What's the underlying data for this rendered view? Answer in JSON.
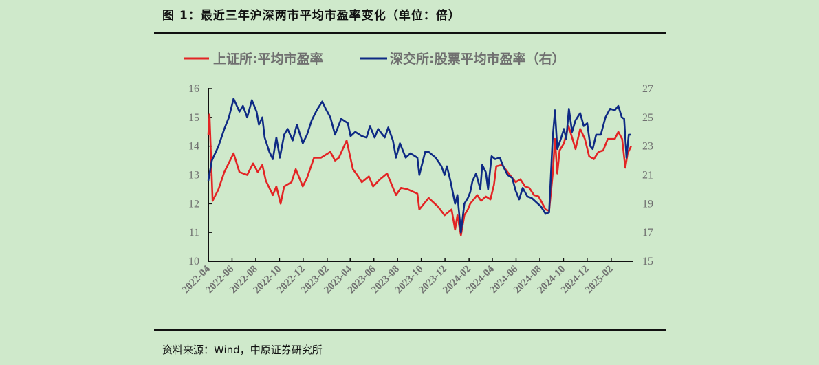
{
  "title": "图 1：最近三年沪深两市平均市盈率变化（单位：倍）",
  "source": "资料来源：Wind，中原证券研究所",
  "chart_data": {
    "type": "line",
    "title": "",
    "grid": false,
    "legend_position": "top",
    "xlim": [
      "2022-04-01",
      "2025-03-28"
    ],
    "x_ticks": [
      "2022-04",
      "2022-06",
      "2022-08",
      "2022-10",
      "2022-12",
      "2023-02",
      "2023-04",
      "2023-06",
      "2023-08",
      "2023-10",
      "2023-12",
      "2024-02",
      "2024-04",
      "2024-06",
      "2024-08",
      "2024-10",
      "2024-12",
      "2025-02"
    ],
    "y_left": {
      "lim": [
        10,
        16
      ],
      "ticks": [
        "10",
        "11",
        "12",
        "13",
        "14",
        "15",
        "16"
      ]
    },
    "y_right": {
      "lim": [
        15,
        27
      ],
      "ticks": [
        "15",
        "17",
        "19",
        "21",
        "23",
        "25",
        "27"
      ]
    },
    "series": [
      {
        "name": "上证所:平均市盈率",
        "axis": "left",
        "color": "#e32424",
        "points": [
          [
            "2022-04-01",
            14.4
          ],
          [
            "2022-04-04",
            15.1
          ],
          [
            "2022-04-12",
            12.1
          ],
          [
            "2022-04-27",
            12.5
          ],
          [
            "2022-05-12",
            13.1
          ],
          [
            "2022-06-05",
            13.75
          ],
          [
            "2022-06-20",
            13.1
          ],
          [
            "2022-07-10",
            13.0
          ],
          [
            "2022-07-25",
            13.4
          ],
          [
            "2022-08-06",
            13.1
          ],
          [
            "2022-08-18",
            13.35
          ],
          [
            "2022-08-27",
            12.8
          ],
          [
            "2022-09-14",
            12.3
          ],
          [
            "2022-09-23",
            12.6
          ],
          [
            "2022-10-04",
            12.0
          ],
          [
            "2022-10-13",
            12.6
          ],
          [
            "2022-11-01",
            12.75
          ],
          [
            "2022-11-12",
            13.2
          ],
          [
            "2022-11-30",
            12.6
          ],
          [
            "2022-12-11",
            12.9
          ],
          [
            "2022-12-29",
            13.6
          ],
          [
            "2023-01-16",
            13.6
          ],
          [
            "2023-02-09",
            13.8
          ],
          [
            "2023-02-21",
            13.5
          ],
          [
            "2023-03-03",
            13.6
          ],
          [
            "2023-03-23",
            14.2
          ],
          [
            "2023-04-08",
            13.2
          ],
          [
            "2023-04-19",
            13.0
          ],
          [
            "2023-05-01",
            12.75
          ],
          [
            "2023-05-19",
            12.95
          ],
          [
            "2023-05-30",
            12.6
          ],
          [
            "2023-06-17",
            12.85
          ],
          [
            "2023-07-05",
            13.05
          ],
          [
            "2023-07-28",
            12.3
          ],
          [
            "2023-08-10",
            12.55
          ],
          [
            "2023-08-27",
            12.5
          ],
          [
            "2023-09-21",
            12.35
          ],
          [
            "2023-09-26",
            11.8
          ],
          [
            "2023-10-20",
            12.2
          ],
          [
            "2023-11-13",
            11.9
          ],
          [
            "2023-11-30",
            11.6
          ],
          [
            "2023-12-18",
            11.8
          ],
          [
            "2023-12-27",
            11.1
          ],
          [
            "2024-01-02",
            11.6
          ],
          [
            "2024-01-11",
            10.9
          ],
          [
            "2024-01-20",
            11.6
          ],
          [
            "2024-01-29",
            11.8
          ],
          [
            "2024-02-04",
            12.0
          ],
          [
            "2024-02-22",
            12.3
          ],
          [
            "2024-03-03",
            12.1
          ],
          [
            "2024-03-15",
            12.25
          ],
          [
            "2024-03-27",
            12.15
          ],
          [
            "2024-04-05",
            12.65
          ],
          [
            "2024-04-11",
            13.3
          ],
          [
            "2024-04-26",
            13.35
          ],
          [
            "2024-05-13",
            13.05
          ],
          [
            "2024-05-31",
            12.75
          ],
          [
            "2024-06-12",
            12.85
          ],
          [
            "2024-06-24",
            12.6
          ],
          [
            "2024-07-05",
            12.55
          ],
          [
            "2024-07-17",
            12.3
          ],
          [
            "2024-07-29",
            12.25
          ],
          [
            "2024-08-16",
            11.8
          ],
          [
            "2024-08-25",
            11.75
          ],
          [
            "2024-09-03",
            13.0
          ],
          [
            "2024-09-09",
            14.25
          ],
          [
            "2024-09-15",
            13.05
          ],
          [
            "2024-09-21",
            13.85
          ],
          [
            "2024-10-02",
            14.1
          ],
          [
            "2024-10-14",
            14.7
          ],
          [
            "2024-10-23",
            14.3
          ],
          [
            "2024-11-01",
            13.9
          ],
          [
            "2024-11-13",
            14.6
          ],
          [
            "2024-11-25",
            14.25
          ],
          [
            "2024-12-06",
            13.65
          ],
          [
            "2024-12-18",
            13.55
          ],
          [
            "2024-12-30",
            13.8
          ],
          [
            "2025-01-11",
            13.85
          ],
          [
            "2025-01-23",
            14.25
          ],
          [
            "2025-02-10",
            14.25
          ],
          [
            "2025-02-19",
            14.5
          ],
          [
            "2025-03-01",
            14.25
          ],
          [
            "2025-03-09",
            13.25
          ],
          [
            "2025-03-15",
            13.75
          ],
          [
            "2025-03-24",
            14.0
          ]
        ]
      },
      {
        "name": "深交所:股票平均市盈率（右）",
        "axis": "right",
        "color": "#0e2a84",
        "points": [
          [
            "2022-04-01",
            20.6
          ],
          [
            "2022-04-10",
            22.0
          ],
          [
            "2022-04-27",
            23.0
          ],
          [
            "2022-05-12",
            24.2
          ],
          [
            "2022-05-24",
            25.0
          ],
          [
            "2022-06-05",
            26.3
          ],
          [
            "2022-06-20",
            25.4
          ],
          [
            "2022-06-29",
            25.8
          ],
          [
            "2022-07-10",
            25.0
          ],
          [
            "2022-07-22",
            26.2
          ],
          [
            "2022-08-03",
            25.4
          ],
          [
            "2022-08-09",
            24.5
          ],
          [
            "2022-08-18",
            25.0
          ],
          [
            "2022-08-24",
            23.6
          ],
          [
            "2022-09-05",
            22.6
          ],
          [
            "2022-09-14",
            22.1
          ],
          [
            "2022-09-23",
            23.6
          ],
          [
            "2022-10-02",
            22.2
          ],
          [
            "2022-10-13",
            23.8
          ],
          [
            "2022-10-22",
            24.2
          ],
          [
            "2022-11-04",
            23.4
          ],
          [
            "2022-11-15",
            24.5
          ],
          [
            "2022-11-30",
            23.2
          ],
          [
            "2022-12-11",
            23.8
          ],
          [
            "2022-12-23",
            24.8
          ],
          [
            "2023-01-05",
            25.5
          ],
          [
            "2023-01-19",
            26.1
          ],
          [
            "2023-01-28",
            25.6
          ],
          [
            "2023-02-09",
            25.0
          ],
          [
            "2023-02-21",
            23.8
          ],
          [
            "2023-03-09",
            24.9
          ],
          [
            "2023-03-26",
            24.6
          ],
          [
            "2023-04-02",
            23.7
          ],
          [
            "2023-04-14",
            24.0
          ],
          [
            "2023-05-01",
            23.7
          ],
          [
            "2023-05-13",
            23.6
          ],
          [
            "2023-05-22",
            24.4
          ],
          [
            "2023-06-03",
            23.6
          ],
          [
            "2023-06-12",
            24.2
          ],
          [
            "2023-06-29",
            23.6
          ],
          [
            "2023-07-08",
            24.3
          ],
          [
            "2023-07-20",
            23.4
          ],
          [
            "2023-07-28",
            22.2
          ],
          [
            "2023-08-07",
            23.2
          ],
          [
            "2023-08-22",
            22.2
          ],
          [
            "2023-09-03",
            22.5
          ],
          [
            "2023-09-21",
            22.2
          ],
          [
            "2023-09-26",
            21.0
          ],
          [
            "2023-10-11",
            22.6
          ],
          [
            "2023-10-20",
            22.6
          ],
          [
            "2023-11-07",
            22.2
          ],
          [
            "2023-11-22",
            21.6
          ],
          [
            "2023-11-30",
            21.0
          ],
          [
            "2023-12-06",
            21.6
          ],
          [
            "2023-12-15",
            20.6
          ],
          [
            "2023-12-27",
            19.0
          ],
          [
            "2024-01-02",
            19.6
          ],
          [
            "2024-01-11",
            17.0
          ],
          [
            "2024-01-20",
            19.0
          ],
          [
            "2024-01-29",
            19.4
          ],
          [
            "2024-02-04",
            19.8
          ],
          [
            "2024-02-10",
            20.6
          ],
          [
            "2024-02-19",
            21.1
          ],
          [
            "2024-03-01",
            20.0
          ],
          [
            "2024-03-06",
            21.7
          ],
          [
            "2024-03-15",
            21.2
          ],
          [
            "2024-03-21",
            20.0
          ],
          [
            "2024-03-30",
            22.3
          ],
          [
            "2024-04-08",
            22.1
          ],
          [
            "2024-04-20",
            22.2
          ],
          [
            "2024-04-29",
            21.6
          ],
          [
            "2024-05-10",
            21.0
          ],
          [
            "2024-05-22",
            20.8
          ],
          [
            "2024-05-31",
            19.9
          ],
          [
            "2024-06-09",
            19.3
          ],
          [
            "2024-06-18",
            20.1
          ],
          [
            "2024-06-30",
            19.5
          ],
          [
            "2024-07-11",
            19.4
          ],
          [
            "2024-07-23",
            19.1
          ],
          [
            "2024-08-04",
            18.8
          ],
          [
            "2024-08-16",
            18.3
          ],
          [
            "2024-08-25",
            18.4
          ],
          [
            "2024-09-03",
            23.5
          ],
          [
            "2024-09-09",
            25.5
          ],
          [
            "2024-09-15",
            22.8
          ],
          [
            "2024-09-24",
            23.5
          ],
          [
            "2024-10-02",
            24.2
          ],
          [
            "2024-10-08",
            23.5
          ],
          [
            "2024-10-15",
            25.6
          ],
          [
            "2024-10-23",
            24.0
          ],
          [
            "2024-11-01",
            24.8
          ],
          [
            "2024-11-13",
            25.3
          ],
          [
            "2024-11-22",
            24.4
          ],
          [
            "2024-12-01",
            24.6
          ],
          [
            "2024-12-09",
            23.0
          ],
          [
            "2024-12-15",
            22.8
          ],
          [
            "2024-12-24",
            23.8
          ],
          [
            "2025-01-05",
            23.8
          ],
          [
            "2025-01-17",
            25.0
          ],
          [
            "2025-01-29",
            25.6
          ],
          [
            "2025-02-10",
            25.5
          ],
          [
            "2025-02-19",
            25.8
          ],
          [
            "2025-02-28",
            25.0
          ],
          [
            "2025-03-06",
            24.9
          ],
          [
            "2025-03-12",
            22.2
          ],
          [
            "2025-03-18",
            23.8
          ],
          [
            "2025-03-24",
            23.8
          ]
        ]
      }
    ]
  }
}
